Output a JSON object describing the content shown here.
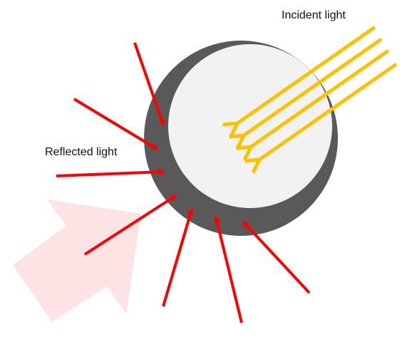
{
  "labels": {
    "incident": "Incident light",
    "reflected": "Reflected light"
  },
  "colors": {
    "background": "#ffffff",
    "sphere_dark": "#595959",
    "sphere_light": "#f2f2f2",
    "incident_arrow": "#ffc000",
    "reflected_arrow": "#ff0000",
    "observer_arrow": "#fde3e3"
  }
}
